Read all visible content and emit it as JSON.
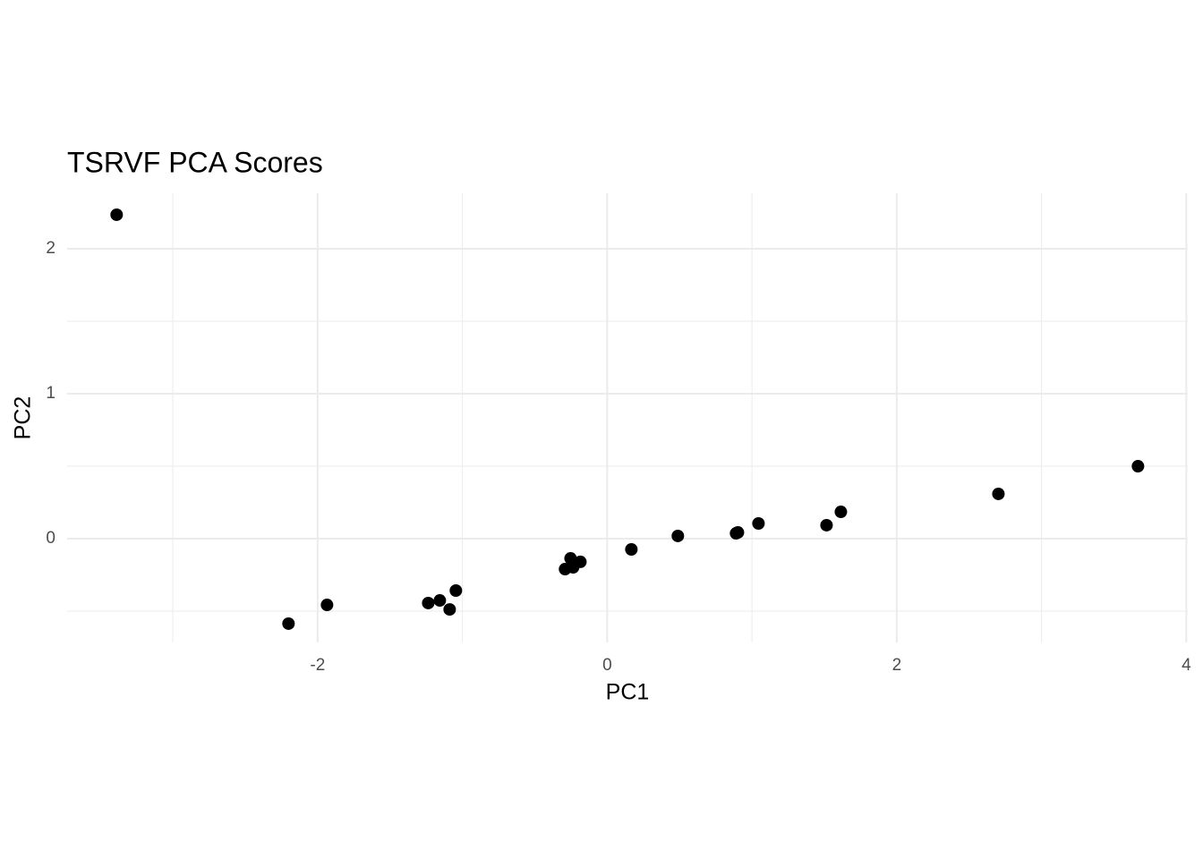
{
  "chart_data": {
    "type": "scatter",
    "title": "TSRVF PCA Scores",
    "x_label": "PC1",
    "y_label": "PC2",
    "x": [
      -3.388,
      -2.201,
      -1.935,
      -1.236,
      -1.156,
      -1.088,
      -1.045,
      -0.291,
      -0.253,
      -0.235,
      -0.185,
      0.167,
      0.488,
      0.89,
      0.903,
      1.045,
      1.515,
      1.614,
      2.702,
      3.666
    ],
    "values": [
      2.235,
      -0.586,
      -0.457,
      -0.444,
      -0.426,
      -0.488,
      -0.358,
      -0.21,
      -0.136,
      -0.198,
      -0.16,
      -0.074,
      0.019,
      0.037,
      0.043,
      0.105,
      0.093,
      0.185,
      0.309,
      0.5
    ],
    "color": "#000000",
    "xlim": [
      -3.73,
      4.01
    ],
    "ylim": [
      -0.716,
      2.383
    ],
    "xticks": [
      -2,
      0,
      2,
      4
    ],
    "yticks": [
      0,
      1,
      2
    ],
    "xminor": [
      -3,
      -1,
      1,
      3
    ],
    "yminor": [
      -0.5,
      0.5,
      1.5
    ],
    "grid": true
  }
}
